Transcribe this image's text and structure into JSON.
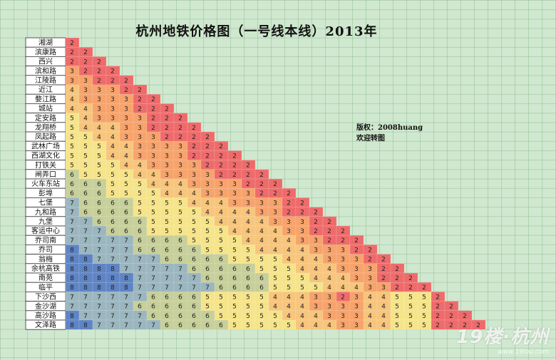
{
  "title": "杭州地铁价格图（一号线本线）2013年",
  "credit": {
    "line1": "版权：2008huang",
    "line2": "欢迎转图"
  },
  "watermark": {
    "main": "19楼·杭州",
    "sub": "www.19lou.com"
  },
  "chart_data": {
    "type": "table",
    "title": "杭州地铁价格图（一号线本线）2013年",
    "stations": [
      "湘湖",
      "滨康路",
      "西兴",
      "滨和路",
      "江陵路",
      "近江",
      "婺江路",
      "城站",
      "定安路",
      "龙翔桥",
      "凤起路",
      "武林广场",
      "西湖文化",
      "打铁关",
      "闸弄口",
      "火车东站",
      "彭埠",
      "七堡",
      "九和路",
      "九堡",
      "客运中心",
      "乔司南",
      "乔司",
      "翁梅",
      "余杭高铁",
      "南苑",
      "临平",
      "下沙西",
      "金沙湖",
      "高沙路",
      "文泽路"
    ],
    "fares": [
      [
        2
      ],
      [
        2,
        2
      ],
      [
        2,
        2,
        2
      ],
      [
        3,
        2,
        2,
        2
      ],
      [
        3,
        3,
        2,
        2,
        2
      ],
      [
        4,
        3,
        3,
        3,
        2,
        2
      ],
      [
        4,
        3,
        3,
        3,
        3,
        2,
        2
      ],
      [
        4,
        4,
        3,
        3,
        3,
        2,
        2,
        2
      ],
      [
        5,
        4,
        3,
        3,
        3,
        3,
        2,
        2,
        2
      ],
      [
        5,
        4,
        4,
        4,
        3,
        3,
        2,
        2,
        2,
        2
      ],
      [
        5,
        5,
        4,
        4,
        3,
        3,
        3,
        2,
        2,
        2,
        2
      ],
      [
        5,
        5,
        5,
        4,
        4,
        3,
        3,
        3,
        3,
        2,
        2,
        2
      ],
      [
        5,
        5,
        5,
        4,
        4,
        3,
        3,
        3,
        3,
        2,
        2,
        2,
        2
      ],
      [
        5,
        5,
        5,
        5,
        4,
        4,
        3,
        3,
        3,
        3,
        2,
        2,
        2,
        2
      ],
      [
        6,
        5,
        5,
        5,
        5,
        4,
        4,
        3,
        3,
        3,
        3,
        2,
        2,
        2,
        2
      ],
      [
        6,
        6,
        6,
        5,
        5,
        5,
        4,
        4,
        4,
        3,
        3,
        3,
        3,
        2,
        2,
        2
      ],
      [
        6,
        6,
        6,
        5,
        5,
        5,
        5,
        4,
        4,
        4,
        3,
        3,
        3,
        3,
        2,
        2,
        2
      ],
      [
        7,
        6,
        6,
        6,
        6,
        5,
        5,
        5,
        5,
        4,
        4,
        4,
        3,
        3,
        3,
        3,
        2,
        2
      ],
      [
        7,
        6,
        6,
        6,
        6,
        5,
        5,
        5,
        5,
        5,
        4,
        4,
        4,
        4,
        3,
        3,
        2,
        2,
        2
      ],
      [
        7,
        7,
        6,
        6,
        6,
        6,
        5,
        5,
        5,
        5,
        5,
        4,
        4,
        4,
        4,
        3,
        3,
        3,
        2,
        2
      ],
      [
        7,
        7,
        7,
        6,
        6,
        6,
        5,
        5,
        5,
        5,
        5,
        5,
        4,
        4,
        4,
        4,
        3,
        3,
        2,
        2,
        2
      ],
      [
        7,
        7,
        7,
        7,
        7,
        6,
        6,
        6,
        6,
        5,
        5,
        5,
        5,
        4,
        4,
        4,
        4,
        3,
        3,
        2,
        2,
        2
      ],
      [
        8,
        7,
        7,
        7,
        7,
        6,
        6,
        6,
        6,
        6,
        5,
        5,
        5,
        5,
        4,
        4,
        4,
        4,
        3,
        3,
        3,
        2,
        2
      ],
      [
        8,
        8,
        7,
        7,
        7,
        7,
        7,
        6,
        6,
        6,
        6,
        6,
        5,
        5,
        5,
        5,
        4,
        4,
        4,
        3,
        3,
        3,
        2,
        2
      ],
      [
        8,
        8,
        8,
        8,
        7,
        7,
        7,
        7,
        7,
        6,
        6,
        6,
        6,
        6,
        5,
        5,
        5,
        4,
        4,
        4,
        3,
        3,
        3,
        2,
        2
      ],
      [
        8,
        8,
        8,
        8,
        8,
        7,
        7,
        7,
        7,
        7,
        6,
        6,
        6,
        6,
        6,
        5,
        5,
        5,
        4,
        4,
        4,
        3,
        3,
        2,
        2,
        2
      ],
      [
        8,
        8,
        8,
        8,
        8,
        7,
        7,
        7,
        7,
        7,
        7,
        6,
        6,
        6,
        6,
        5,
        5,
        5,
        5,
        4,
        4,
        4,
        3,
        3,
        2,
        2,
        2
      ],
      [
        7,
        7,
        7,
        7,
        7,
        7,
        6,
        6,
        6,
        6,
        5,
        5,
        5,
        5,
        5,
        4,
        4,
        4,
        3,
        3,
        2,
        3,
        4,
        4,
        5,
        5,
        5,
        2
      ],
      [
        7,
        7,
        7,
        7,
        7,
        6,
        6,
        6,
        6,
        6,
        5,
        5,
        5,
        5,
        5,
        4,
        4,
        4,
        3,
        3,
        3,
        3,
        4,
        4,
        5,
        5,
        5,
        2,
        2
      ],
      [
        8,
        7,
        7,
        7,
        7,
        7,
        6,
        6,
        6,
        6,
        6,
        5,
        5,
        5,
        5,
        5,
        4,
        4,
        4,
        3,
        3,
        3,
        4,
        4,
        5,
        5,
        5,
        2,
        2,
        2
      ],
      [
        8,
        8,
        7,
        7,
        7,
        7,
        7,
        6,
        6,
        6,
        6,
        6,
        5,
        5,
        5,
        5,
        5,
        4,
        4,
        4,
        3,
        3,
        4,
        4,
        5,
        5,
        5,
        2,
        2,
        2,
        2
      ]
    ],
    "colors": {
      "2": "#ef6b6b",
      "3": "#f7a36c",
      "4": "#f8c57c",
      "5": "#f6e48a",
      "6": "#c7cf9a",
      "7": "#9bb6bf",
      "8": "#5f84c5"
    }
  }
}
